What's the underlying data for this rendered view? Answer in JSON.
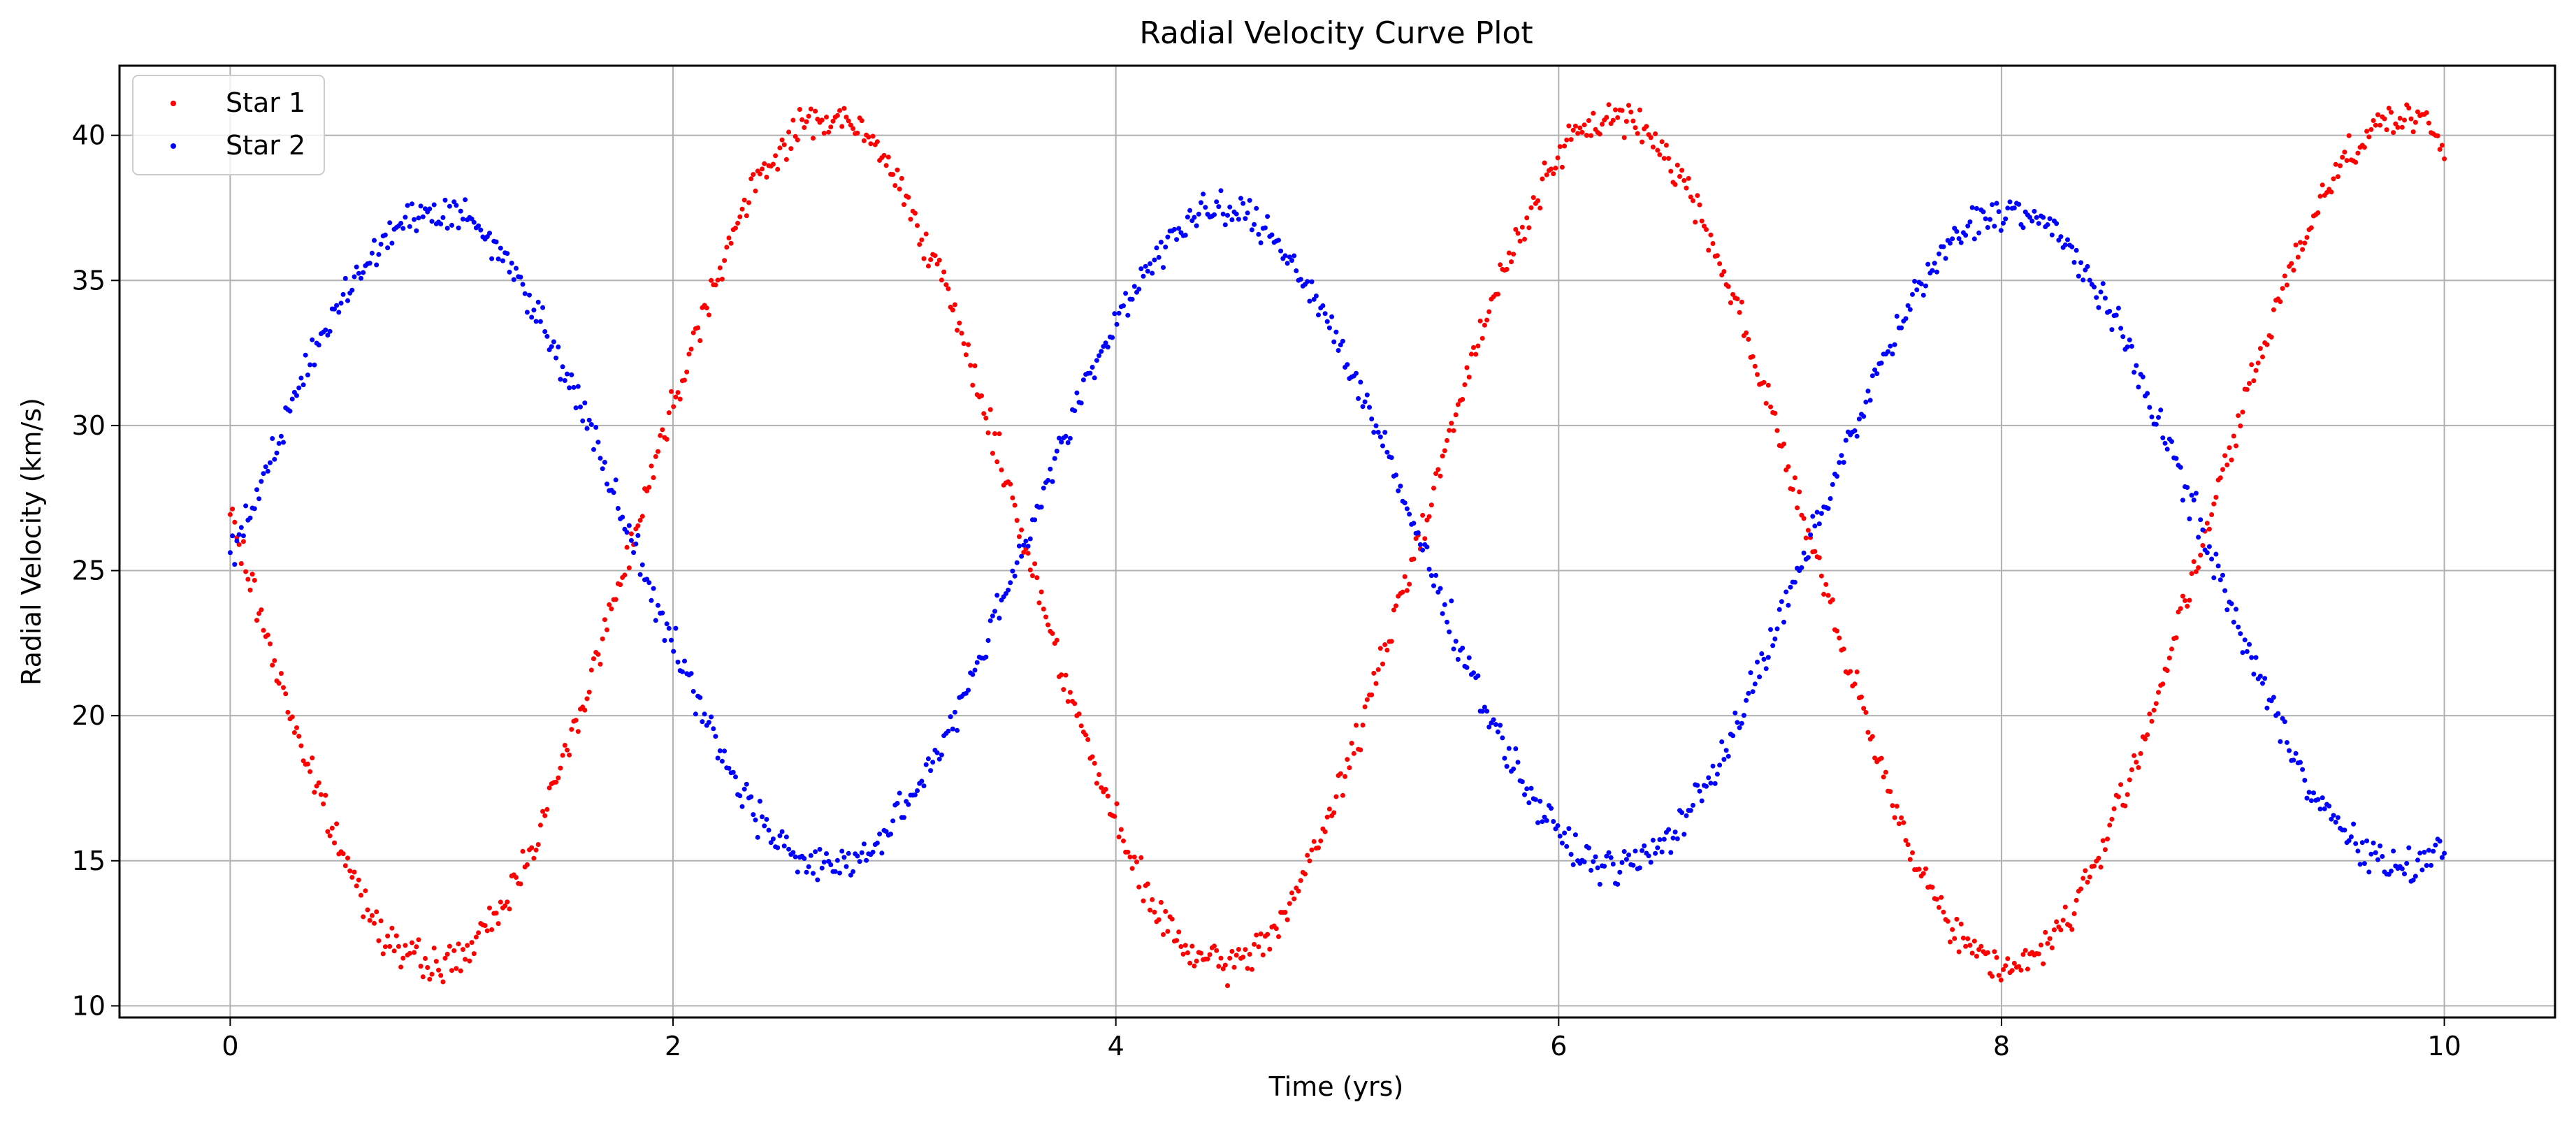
{
  "chart_data": {
    "type": "scatter",
    "title": "Radial Velocity Curve Plot",
    "xlabel": "Time (yrs)",
    "ylabel": "Radial Velocity (km/s)",
    "xlim": [
      -0.5,
      10.5
    ],
    "ylim": [
      9.6,
      42.4
    ],
    "xticks": [
      0,
      2,
      4,
      6,
      8,
      10
    ],
    "xtick_labels": [
      "0",
      "2",
      "4",
      "6",
      "8",
      "10"
    ],
    "yticks": [
      10,
      15,
      20,
      25,
      30,
      35,
      40
    ],
    "ytick_labels": [
      "10",
      "15",
      "20",
      "25",
      "30",
      "35",
      "40"
    ],
    "grid": true,
    "legend_position": "top-left",
    "sampling": {
      "x_start": 0,
      "x_end": 10,
      "points_per_series": 1000
    },
    "series": [
      {
        "name": "Star 1",
        "color": "#ff0000",
        "model": {
          "mean": 26.0,
          "amplitude": 14.6,
          "period_yrs": 3.55,
          "peak_at_yrs": 2.7,
          "noise": 0.3
        }
      },
      {
        "name": "Star 2",
        "color": "#0000ff",
        "model": {
          "mean": 26.1,
          "amplitude": 11.3,
          "period_yrs": 3.55,
          "peak_at_yrs": 0.93,
          "noise": 0.3
        }
      }
    ]
  }
}
